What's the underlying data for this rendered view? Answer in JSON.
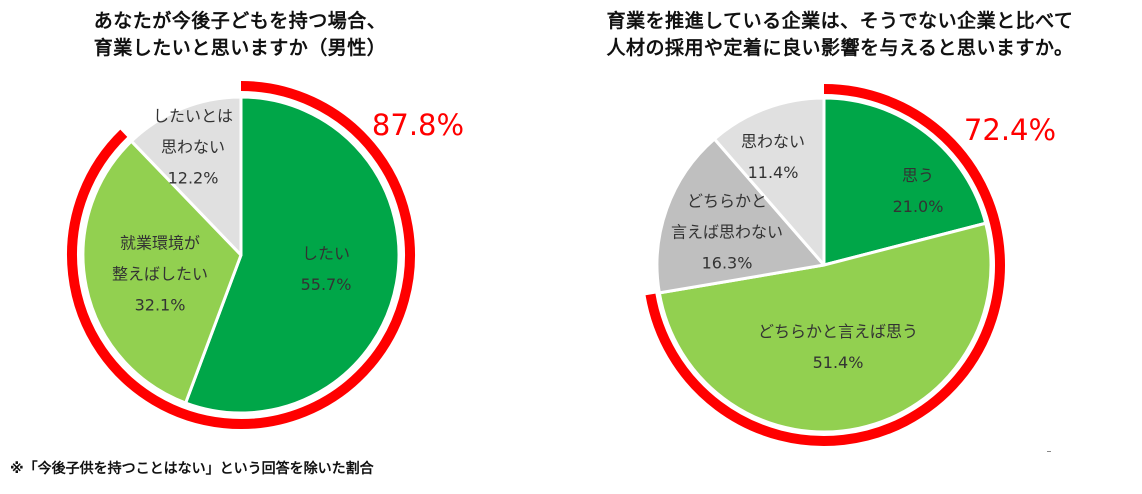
{
  "chart_data": [
    {
      "type": "pie",
      "title": [
        "あなたが今後子どもを持つ場合、",
        "育業したいと思いますか（男性）"
      ],
      "slices": [
        {
          "label": [
            "したい"
          ],
          "value": 55.7,
          "value_label": "55.7%",
          "color": "#00a648"
        },
        {
          "label": [
            "就業環境が",
            "整えばしたい"
          ],
          "value": 32.1,
          "value_label": "32.1%",
          "color": "#92d050"
        },
        {
          "label": [
            "したいとは",
            "思わない"
          ],
          "value": 12.2,
          "value_label": "12.2%",
          "color": "#e0e0e0"
        }
      ],
      "highlight_value": "87.8%",
      "highlight_color": "#ff0000"
    },
    {
      "type": "pie",
      "title": [
        "育業を推進している企業は、そうでない企業と比べて",
        "人材の採用や定着に良い影響を与えると思いますか。"
      ],
      "slices": [
        {
          "label": [
            "思う"
          ],
          "value": 21.0,
          "value_label": "21.0%",
          "color": "#00a648"
        },
        {
          "label": [
            "どちらかと言えば思う"
          ],
          "value": 51.4,
          "value_label": "51.4%",
          "color": "#92d050"
        },
        {
          "label": [
            "どちらかと",
            "言えば思わない"
          ],
          "value": 16.3,
          "value_label": "16.3%",
          "color": "#bfbfbf"
        },
        {
          "label": [
            "思わない"
          ],
          "value": 11.4,
          "value_label": "11.4%",
          "color": "#e0e0e0"
        }
      ],
      "highlight_value": "72.4%",
      "highlight_color": "#ff0000"
    }
  ],
  "footnote": "※「今後子供を持つことはない」という回答を除いた割合"
}
